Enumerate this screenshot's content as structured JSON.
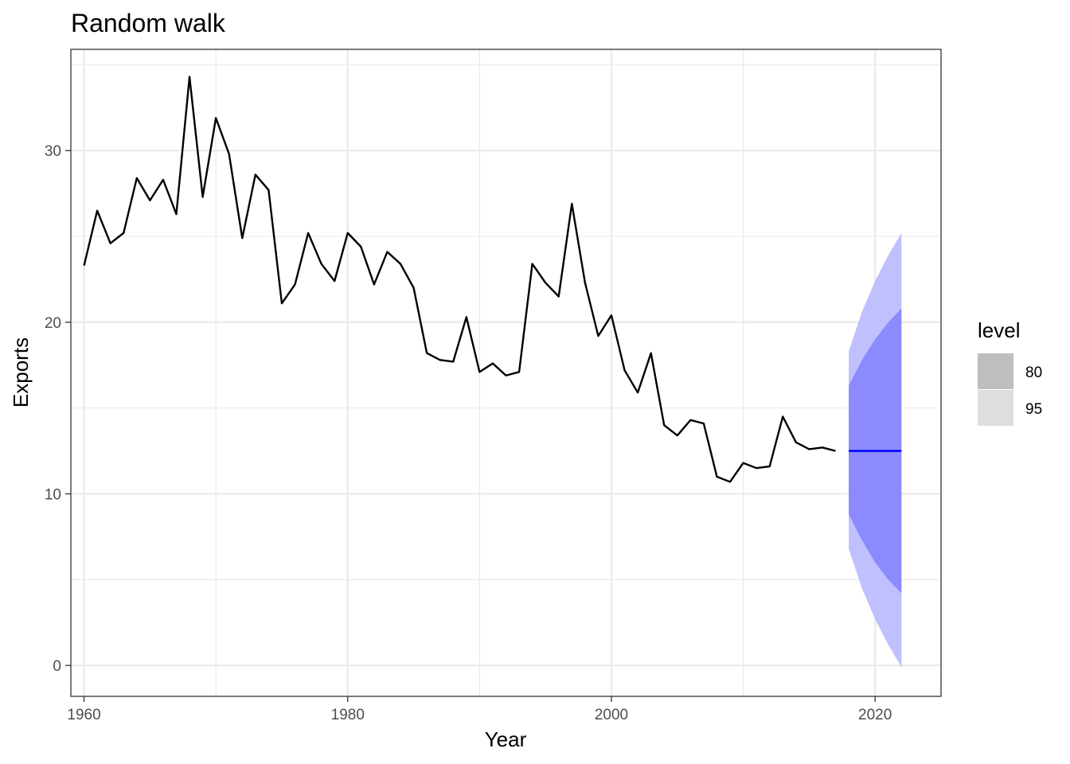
{
  "chart_data": {
    "type": "line",
    "title": "Random walk",
    "xlabel": "Year",
    "ylabel": "Exports",
    "xlim": [
      1959,
      2025
    ],
    "ylim": [
      -1.8,
      35.9
    ],
    "x_ticks": [
      1960,
      1980,
      2000,
      2020
    ],
    "y_ticks": [
      0,
      10,
      20,
      30
    ],
    "grid": true,
    "legend": {
      "title": "level",
      "position": "right",
      "entries": [
        {
          "label": "80",
          "color": "#bebebe"
        },
        {
          "label": "95",
          "color": "#dedede"
        }
      ]
    },
    "series": [
      {
        "color": "#000000",
        "x": [
          1960,
          1961,
          1962,
          1963,
          1964,
          1965,
          1966,
          1967,
          1968,
          1969,
          1970,
          1971,
          1972,
          1973,
          1974,
          1975,
          1976,
          1977,
          1978,
          1979,
          1980,
          1981,
          1982,
          1983,
          1984,
          1985,
          1986,
          1987,
          1988,
          1989,
          1990,
          1991,
          1992,
          1993,
          1994,
          1995,
          1996,
          1997,
          1998,
          1999,
          2000,
          2001,
          2002,
          2003,
          2004,
          2005,
          2006,
          2007,
          2008,
          2009,
          2010,
          2011,
          2012,
          2013,
          2014,
          2015,
          2016,
          2017
        ],
        "values": [
          23.3,
          26.5,
          24.6,
          25.2,
          28.4,
          27.1,
          28.3,
          26.3,
          34.3,
          27.3,
          31.9,
          29.8,
          24.9,
          28.6,
          27.7,
          21.1,
          22.2,
          25.2,
          23.4,
          22.4,
          25.2,
          24.4,
          22.2,
          24.1,
          23.4,
          22.0,
          18.2,
          17.8,
          17.7,
          20.3,
          17.1,
          17.6,
          16.9,
          17.1,
          23.4,
          22.3,
          21.5,
          26.9,
          22.3,
          19.2,
          20.4,
          17.2,
          15.9,
          18.2,
          14.0,
          13.4,
          14.3,
          14.1,
          11.0,
          10.7,
          11.8,
          11.5,
          11.6,
          14.5,
          13.0,
          12.6,
          12.7,
          12.5
        ]
      }
    ],
    "forecast": {
      "color": "#0000ff",
      "x": [
        2018,
        2019,
        2020,
        2021,
        2022
      ],
      "mean": [
        12.5,
        12.5,
        12.5,
        12.5,
        12.5
      ],
      "lower80": [
        8.8,
        7.3,
        6.0,
        5.0,
        4.2
      ],
      "upper80": [
        16.3,
        17.8,
        19.0,
        20.0,
        20.8
      ],
      "lower95": [
        6.8,
        4.5,
        2.7,
        1.2,
        -0.1
      ],
      "upper95": [
        18.3,
        20.6,
        22.4,
        23.9,
        25.2
      ],
      "band80_color": "#8b8bff",
      "band95_color": "#c0c0ff"
    }
  }
}
